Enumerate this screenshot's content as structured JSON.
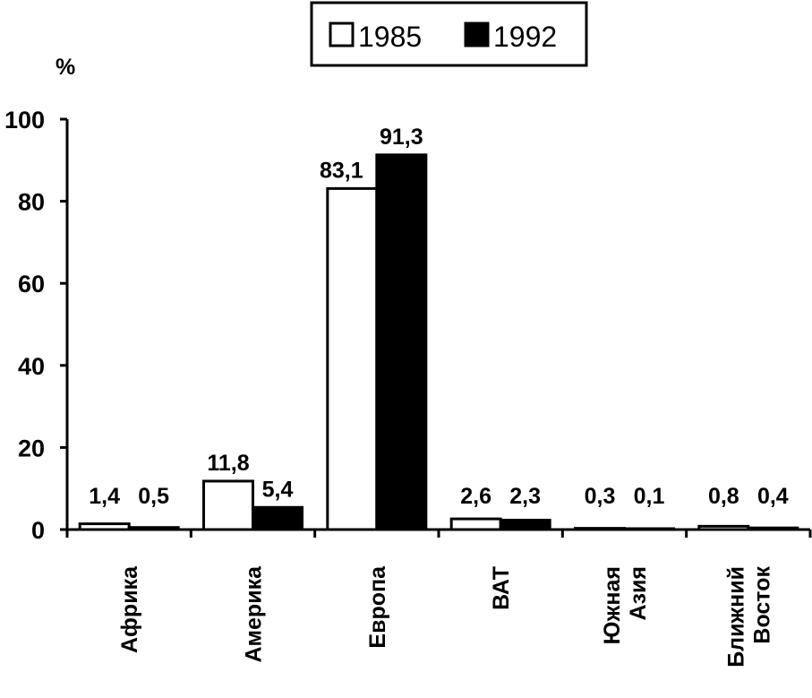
{
  "chart_data": {
    "type": "bar",
    "ylabel": "%",
    "ylim": [
      0,
      100
    ],
    "yticks": [
      "0",
      "20",
      "40",
      "60",
      "80",
      "100"
    ],
    "grid": false,
    "legend_position": "top",
    "categories": [
      [
        "Африка"
      ],
      [
        "Америка"
      ],
      [
        "Европа"
      ],
      [
        "ВАТ"
      ],
      [
        "Южная",
        "Азия"
      ],
      [
        "Ближний",
        "Восток"
      ]
    ],
    "series": [
      {
        "name": "1985",
        "color": "#ffffff",
        "values": [
          1.4,
          11.8,
          83.1,
          2.6,
          0.3,
          0.8
        ],
        "labels": [
          "1,4",
          "11,8",
          "83,1",
          "2,6",
          "0,3",
          "0,8"
        ]
      },
      {
        "name": "1992",
        "color": "#000000",
        "values": [
          0.5,
          5.4,
          91.3,
          2.3,
          0.1,
          0.4
        ],
        "labels": [
          "0,5",
          "5,4",
          "91,3",
          "2,3",
          "0,1",
          "0,4"
        ]
      }
    ]
  }
}
